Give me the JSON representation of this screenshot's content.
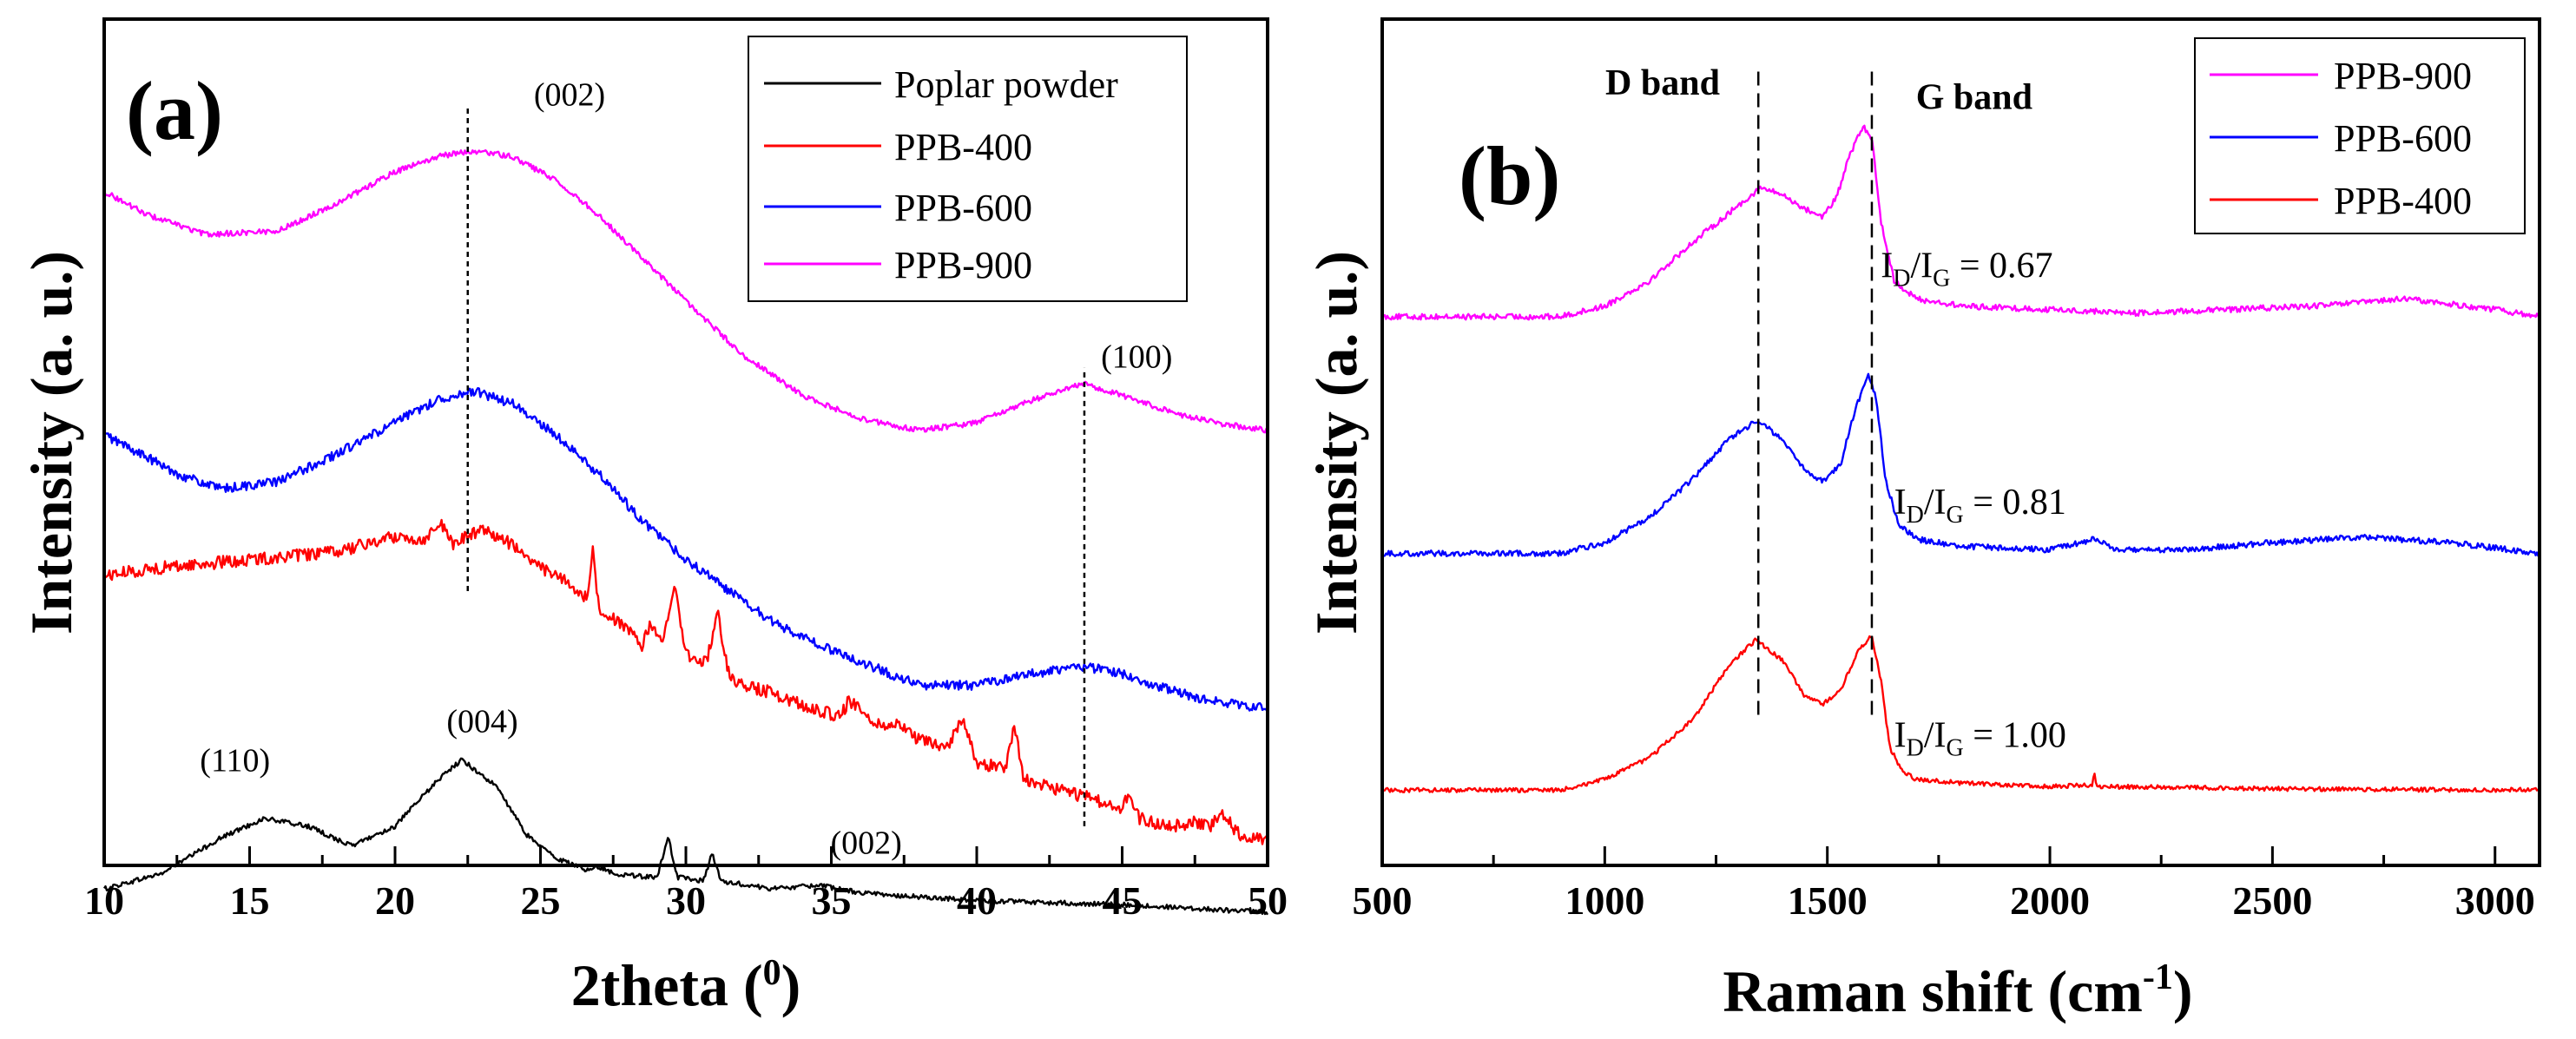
{
  "chart_data": [
    {
      "panel": "(a)",
      "type": "line",
      "xlabel": "2theta",
      "xlabel_unit": "0",
      "ylabel": "Intensity (a. u.)",
      "xlim": [
        10,
        50
      ],
      "xticks": [
        10,
        15,
        20,
        25,
        30,
        35,
        40,
        45,
        50
      ],
      "ylim": [
        0,
        100
      ],
      "legend_position": "top-right",
      "legend": [
        "Poplar powder",
        "PPB-400",
        "PPB-600",
        "PPB-900"
      ],
      "series": [
        {
          "name": "Poplar powder",
          "color": "#000000",
          "noise": 0.3,
          "points": [
            [
              10,
              4
            ],
            [
              12,
              6
            ],
            [
              14,
              10.5
            ],
            [
              15.5,
              13
            ],
            [
              17,
              12
            ],
            [
              18.5,
              9.5
            ],
            [
              20,
              12
            ],
            [
              21.5,
              18
            ],
            [
              22.3,
              20.5
            ],
            [
              23.5,
              17
            ],
            [
              24.5,
              11
            ],
            [
              25.5,
              8
            ],
            [
              26.5,
              6.5
            ],
            [
              27,
              6.8
            ],
            [
              27.5,
              6
            ],
            [
              29,
              5.4
            ],
            [
              29.4,
              10.5
            ],
            [
              29.7,
              5.5
            ],
            [
              30.6,
              5
            ],
            [
              30.9,
              8.5
            ],
            [
              31.2,
              5
            ],
            [
              33,
              4
            ],
            [
              34.5,
              4.5
            ],
            [
              36,
              3.5
            ],
            [
              40,
              2.5
            ],
            [
              45,
              2
            ],
            [
              50,
              1
            ]
          ]
        },
        {
          "name": "PPB-400",
          "color": "#ff0000",
          "noise": 0.8,
          "points": [
            [
              10,
              44
            ],
            [
              12,
              45
            ],
            [
              15,
              46
            ],
            [
              18,
              47
            ],
            [
              20,
              49
            ],
            [
              21,
              48.5
            ],
            [
              21.5,
              51
            ],
            [
              22,
              48
            ],
            [
              23,
              50
            ],
            [
              24,
              48
            ],
            [
              25,
              45
            ],
            [
              26,
              43
            ],
            [
              26.6,
              41
            ],
            [
              26.8,
              47
            ],
            [
              27,
              40
            ],
            [
              28,
              37
            ],
            [
              28.5,
              35
            ],
            [
              28.8,
              38
            ],
            [
              29.2,
              35
            ],
            [
              29.6,
              43
            ],
            [
              30,
              34
            ],
            [
              30.7,
              33
            ],
            [
              31.1,
              39
            ],
            [
              31.5,
              31
            ],
            [
              32,
              30
            ],
            [
              33,
              29
            ],
            [
              34,
              27.5
            ],
            [
              35.3,
              26
            ],
            [
              35.6,
              28
            ],
            [
              36,
              27
            ],
            [
              36.5,
              25
            ],
            [
              37.4,
              25
            ],
            [
              38,
              23
            ],
            [
              39,
              22
            ],
            [
              39.5,
              26
            ],
            [
              40,
              20
            ],
            [
              41,
              19.5
            ],
            [
              41.3,
              25
            ],
            [
              41.6,
              18
            ],
            [
              42,
              17.5
            ],
            [
              43,
              16.5
            ],
            [
              44,
              15.5
            ],
            [
              45,
              14
            ],
            [
              45.2,
              16
            ],
            [
              45.6,
              13
            ],
            [
              46,
              12.5
            ],
            [
              47,
              12
            ],
            [
              47.5,
              12.6
            ],
            [
              48,
              12
            ],
            [
              48.5,
              13.5
            ],
            [
              49,
              11
            ],
            [
              50,
              10
            ]
          ]
        },
        {
          "name": "PPB-600",
          "color": "#0000ff",
          "noise": 0.6,
          "points": [
            [
              10,
              62
            ],
            [
              11,
              60
            ],
            [
              12.5,
              57
            ],
            [
              14,
              55
            ],
            [
              16,
              56
            ],
            [
              18,
              59.5
            ],
            [
              20,
              63.5
            ],
            [
              21.5,
              66.5
            ],
            [
              22.7,
              67.5
            ],
            [
              24,
              66
            ],
            [
              25.5,
              62
            ],
            [
              27,
              57
            ],
            [
              28.5,
              51
            ],
            [
              30,
              46
            ],
            [
              31.5,
              42
            ],
            [
              33,
              38
            ],
            [
              35,
              34.5
            ],
            [
              37,
              31.5
            ],
            [
              38,
              30
            ],
            [
              40,
              30
            ],
            [
              42,
              31.5
            ],
            [
              43.5,
              32.5
            ],
            [
              45,
              31.5
            ],
            [
              46.5,
              29.5
            ],
            [
              48,
              28
            ],
            [
              50,
              27
            ]
          ]
        },
        {
          "name": "PPB-900",
          "color": "#ff00ff",
          "noise": 0.35,
          "points": [
            [
              10,
              93
            ],
            [
              11.5,
              90
            ],
            [
              13.5,
              87.5
            ],
            [
              16,
              88
            ],
            [
              18,
              91.5
            ],
            [
              20,
              95.5
            ],
            [
              21.5,
              97.5
            ],
            [
              22.7,
              98.2
            ],
            [
              24,
              97.5
            ],
            [
              25.5,
              94.5
            ],
            [
              27,
              90
            ],
            [
              28.5,
              84.5
            ],
            [
              30,
              79
            ],
            [
              32,
              72
            ],
            [
              34,
              67
            ],
            [
              36,
              64
            ],
            [
              38,
              62.5
            ],
            [
              40,
              63.5
            ],
            [
              42,
              66.5
            ],
            [
              43.7,
              68.5
            ],
            [
              45,
              67
            ],
            [
              47,
              64.5
            ],
            [
              48.5,
              63.3
            ],
            [
              50,
              62.5
            ]
          ]
        }
      ],
      "annotations": {
        "peak_labels": [
          {
            "text": "(002)",
            "x": 26,
            "y": 104
          },
          {
            "text": "(100)",
            "x": 45.5,
            "y": 70.5
          },
          {
            "text": "(110)",
            "x": 14.5,
            "y": 19
          },
          {
            "text": "(004)",
            "x": 23,
            "y": 24
          },
          {
            "text": "(002)",
            "x": 36.2,
            "y": 8.5
          }
        ],
        "reference_lines": [
          {
            "x": 22.5,
            "y0": 42,
            "y1": 104
          },
          {
            "x": 43.7,
            "y0": 12,
            "y1": 70.5
          }
        ]
      }
    },
    {
      "panel": "(b)",
      "type": "line",
      "xlabel": "Raman shift (cm",
      "xlabel_sup": "-1",
      "xlabel_close": ")",
      "ylabel": "Intensity (a. u.)",
      "xlim": [
        500,
        3100
      ],
      "xticks": [
        500,
        1000,
        1500,
        2000,
        2500,
        3000
      ],
      "ylim": [
        0,
        100
      ],
      "legend_position": "top-right",
      "legend": [
        "PPB-900",
        "PPB-600",
        "PPB-400"
      ],
      "series": [
        {
          "name": "PPB-900",
          "color": "#ff00ff",
          "noise": 0.4,
          "points": [
            [
              500,
              66.5
            ],
            [
              900,
              66.5
            ],
            [
              1000,
              68
            ],
            [
              1100,
              71.5
            ],
            [
              1200,
              77
            ],
            [
              1300,
              82
            ],
            [
              1350,
              84.5
            ],
            [
              1400,
              83.5
            ],
            [
              1450,
              81.5
            ],
            [
              1490,
              80.5
            ],
            [
              1520,
              83
            ],
            [
              1550,
              89
            ],
            [
              1580,
              93
            ],
            [
              1600,
              91.5
            ],
            [
              1620,
              80
            ],
            [
              1650,
              71.5
            ],
            [
              1700,
              69
            ],
            [
              1800,
              68
            ],
            [
              2000,
              67.5
            ],
            [
              2200,
              67
            ],
            [
              2400,
              67.5
            ],
            [
              2600,
              68
            ],
            [
              2800,
              69
            ],
            [
              3000,
              67.5
            ],
            [
              3100,
              66.5
            ]
          ]
        },
        {
          "name": "PPB-600",
          "color": "#0000ff",
          "noise": 0.4,
          "points": [
            [
              500,
              33.5
            ],
            [
              900,
              33.5
            ],
            [
              1000,
              35
            ],
            [
              1100,
              38.5
            ],
            [
              1200,
              44
            ],
            [
              1280,
              49.5
            ],
            [
              1340,
              52
            ],
            [
              1400,
              49.5
            ],
            [
              1450,
              45
            ],
            [
              1490,
              43.5
            ],
            [
              1530,
              46
            ],
            [
              1560,
              53
            ],
            [
              1590,
              58.5
            ],
            [
              1610,
              55
            ],
            [
              1630,
              44
            ],
            [
              1660,
              37.5
            ],
            [
              1700,
              35.5
            ],
            [
              1800,
              34.5
            ],
            [
              2000,
              34
            ],
            [
              2070,
              35
            ],
            [
              2100,
              35.6
            ],
            [
              2130,
              34.8
            ],
            [
              2150,
              34
            ],
            [
              2300,
              34
            ],
            [
              2500,
              35
            ],
            [
              2700,
              35.8
            ],
            [
              2900,
              35
            ],
            [
              3100,
              33.5
            ]
          ]
        },
        {
          "name": "PPB-400",
          "color": "#ff0000",
          "noise": 0.3,
          "points": [
            [
              500,
              0.5
            ],
            [
              900,
              0.5
            ],
            [
              1000,
              2
            ],
            [
              1100,
              5
            ],
            [
              1200,
              10.5
            ],
            [
              1280,
              18
            ],
            [
              1340,
              21.5
            ],
            [
              1400,
              18.5
            ],
            [
              1450,
              13.5
            ],
            [
              1490,
              12.5
            ],
            [
              1530,
              14.5
            ],
            [
              1570,
              20
            ],
            [
              1600,
              22
            ],
            [
              1620,
              16
            ],
            [
              1640,
              6.5
            ],
            [
              1670,
              3
            ],
            [
              1700,
              2
            ],
            [
              1800,
              1.5
            ],
            [
              2000,
              1
            ],
            [
              2095,
              1.2
            ],
            [
              2100,
              3
            ],
            [
              2105,
              1
            ],
            [
              2500,
              0.7
            ],
            [
              3000,
              0.5
            ],
            [
              3100,
              0.6
            ]
          ]
        }
      ],
      "annotations": {
        "band_labels": [
          {
            "text": "D band",
            "x": 1130,
            "y": 97.5
          },
          {
            "text": "G band",
            "x": 1830,
            "y": 95.5
          }
        ],
        "ratio_labels": [
          {
            "text": "I",
            "sub1": "D",
            "slash": "/I",
            "sub2": "G",
            "value": " = 0.67",
            "x": 1620,
            "y": 72
          },
          {
            "text": "I",
            "sub1": "D",
            "slash": "/I",
            "sub2": "G",
            "value": " = 0.81",
            "x": 1650,
            "y": 39
          },
          {
            "text": "I",
            "sub1": "D",
            "slash": "/I",
            "sub2": "G",
            "value": " = 1.00",
            "x": 1650,
            "y": 6.5
          }
        ],
        "reference_lines": [
          {
            "x": 1345,
            "y0": 11,
            "y1": 101
          },
          {
            "x": 1600,
            "y0": 11,
            "y1": 101
          }
        ]
      }
    }
  ]
}
